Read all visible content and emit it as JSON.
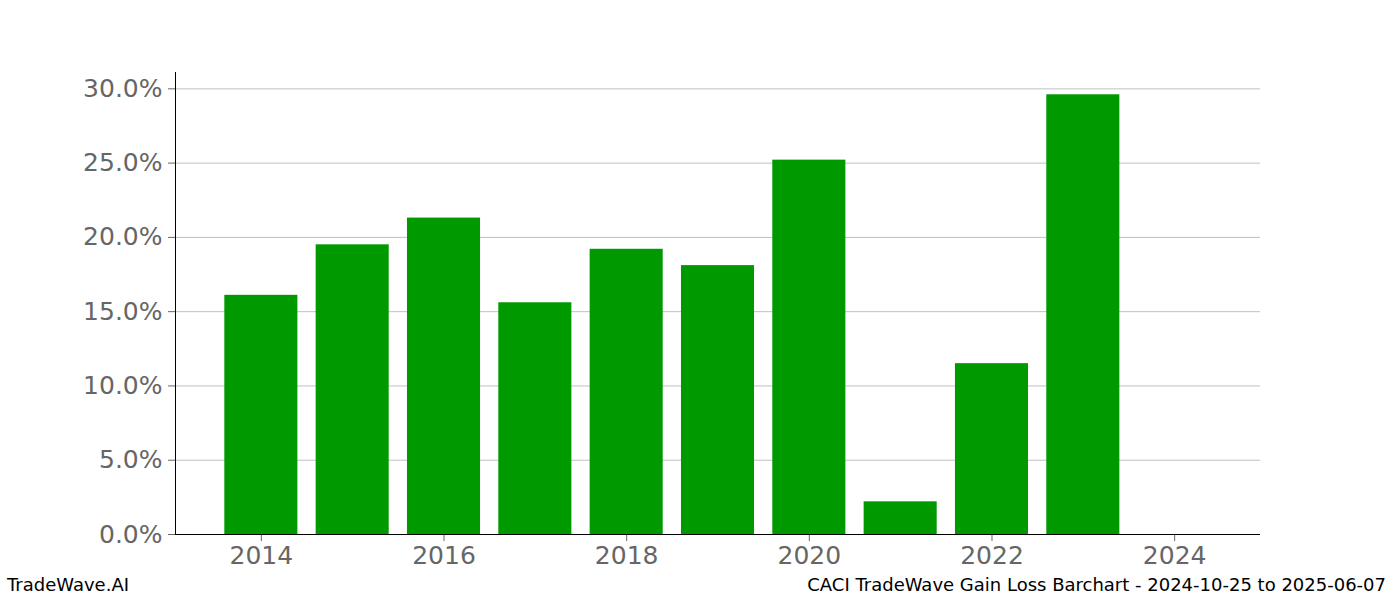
{
  "chart_data": {
    "type": "bar",
    "title": "CACI TradeWave Gain Loss Barchart - 2024-10-25 to 2025-06-07",
    "annotations": [
      "TradeWave.AI"
    ],
    "x": [
      2014,
      2015,
      2016,
      2017,
      2018,
      2019,
      2020,
      2021,
      2022,
      2023
    ],
    "values": [
      16.1,
      19.5,
      21.3,
      15.6,
      19.2,
      18.1,
      25.2,
      2.2,
      11.5,
      29.6
    ],
    "color": "#009900",
    "xlim": [
      2013.06,
      2024.94
    ],
    "xticks": [
      2014,
      2016,
      2018,
      2020,
      2022,
      2024
    ],
    "ylim": [
      0,
      31.1
    ],
    "yticks": [
      {
        "value": 0,
        "label": "0.0%"
      },
      {
        "value": 5,
        "label": "5.0%"
      },
      {
        "value": 10,
        "label": "10.0%"
      },
      {
        "value": 15,
        "label": "15.0%"
      },
      {
        "value": 20,
        "label": "20.0%"
      },
      {
        "value": 25,
        "label": "25.0%"
      },
      {
        "value": 30,
        "label": "30.0%"
      }
    ],
    "grid": true
  }
}
